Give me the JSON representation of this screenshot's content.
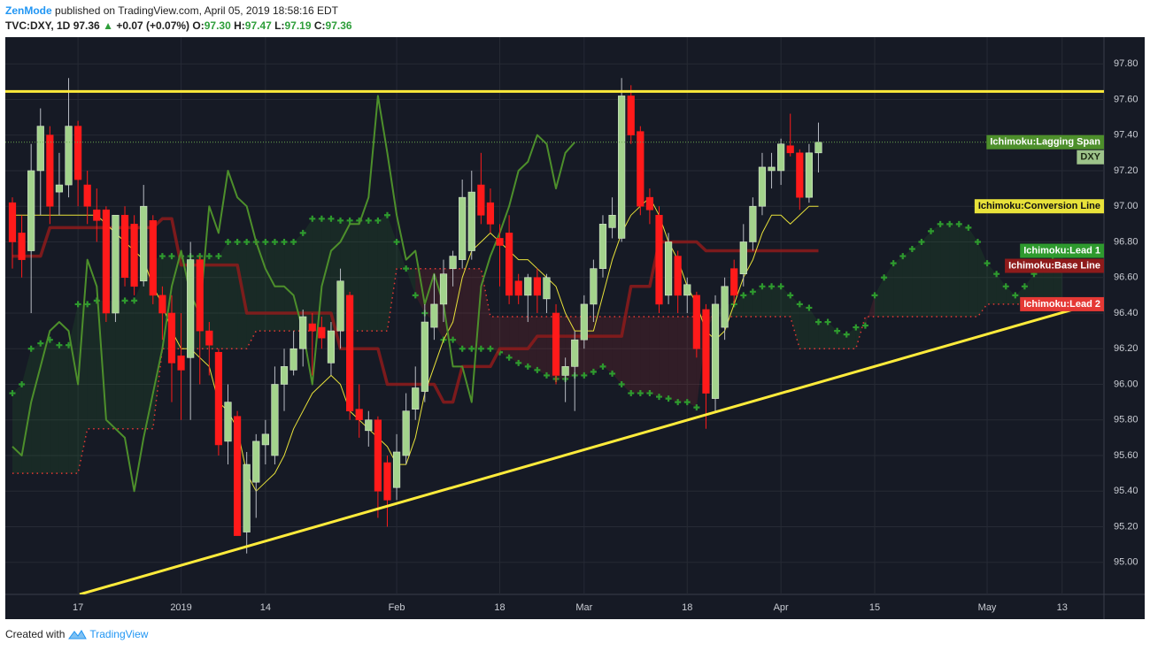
{
  "header": {
    "author": "ZenMode",
    "published": "published on TradingView.com, April 05, 2019 18:58:16 EDT"
  },
  "legend": {
    "symbol": "TVC:DXY, 1D",
    "price": "97.36",
    "arrow": "▲",
    "change": "+0.07 (+0.07%)",
    "open_label": "O:",
    "open": "97.30",
    "high_label": "H:",
    "high": "97.47",
    "low_label": "L:",
    "low": "97.19",
    "close_label": "C:",
    "close": "97.36"
  },
  "footer": {
    "created": "Created with",
    "brand": "TradingView"
  },
  "chart_data": {
    "type": "candlestick",
    "symbol_tag": "DXY",
    "up_color": "#a3d38c",
    "down_color": "#ff1a1a",
    "ylim": [
      94.82,
      97.95
    ],
    "yticks": [
      {
        "value": 95,
        "label": "95.00"
      },
      {
        "value": 95.2,
        "label": "95.20"
      },
      {
        "value": 95.4,
        "label": "95.40"
      },
      {
        "value": 95.6,
        "label": "95.60"
      },
      {
        "value": 95.8,
        "label": "95.80"
      },
      {
        "value": 96,
        "label": "96.00"
      },
      {
        "value": 96.2,
        "label": "96.20"
      },
      {
        "value": 96.4,
        "label": "96.40"
      },
      {
        "value": 96.6,
        "label": "96.60"
      },
      {
        "value": 96.8,
        "label": "96.80"
      },
      {
        "value": 97,
        "label": "97.00"
      },
      {
        "value": 97.2,
        "label": "97.20"
      },
      {
        "value": 97.4,
        "label": "97.40"
      },
      {
        "value": 97.6,
        "label": "97.60"
      },
      {
        "value": 97.8,
        "label": "97.80"
      }
    ],
    "grid": true,
    "horizontal_line": 97.645,
    "trend_line": [
      94.82,
      96.47
    ],
    "categories": [
      null,
      null,
      null,
      null,
      null,
      null,
      null,
      "17",
      null,
      null,
      null,
      null,
      null,
      null,
      null,
      null,
      null,
      null,
      "2019",
      null,
      null,
      null,
      null,
      null,
      null,
      null,
      null,
      "14",
      null,
      null,
      null,
      null,
      null,
      null,
      null,
      null,
      null,
      null,
      null,
      null,
      null,
      "Feb",
      null,
      null,
      null,
      null,
      null,
      null,
      null,
      null,
      null,
      null,
      "18",
      null,
      null,
      null,
      null,
      null,
      null,
      null,
      null,
      "Mar",
      null,
      null,
      null,
      null,
      null,
      null,
      null,
      null,
      null,
      null,
      "18",
      null,
      null,
      null,
      null,
      null,
      null,
      null,
      null,
      null,
      "Apr",
      null,
      null,
      null,
      null,
      null,
      null,
      null,
      null,
      null,
      "15",
      null,
      null,
      null,
      null,
      null,
      null,
      null,
      null,
      null,
      null,
      null,
      "May",
      null,
      null,
      null,
      null,
      null,
      null,
      null,
      "13",
      null,
      null,
      null,
      null
    ],
    "open": [
      97.02,
      96.85,
      96.75,
      97.2,
      97.4,
      97.08,
      97.12,
      97.45,
      97.12,
      96.98,
      96.98,
      96.4,
      96.95,
      96.9,
      96.58,
      96.92,
      96.5,
      96.4,
      96.16,
      96.15,
      96.7,
      96.3,
      96.18,
      95.68,
      95.82,
      95.17,
      95.45,
      95.66,
      95.6,
      96.0,
      96.08,
      96.2,
      96.34,
      96.32,
      96.12,
      96.3,
      96.5,
      95.86,
      95.74,
      95.8,
      95.56,
      95.42,
      95.6,
      95.86,
      95.96,
      96.32,
      96.45,
      96.65,
      96.7,
      96.75,
      97.12,
      97.02,
      96.82,
      96.85,
      96.58,
      96.5,
      96.6,
      96.48,
      96.4,
      96.05,
      96.1,
      96.25,
      96.45,
      96.65,
      96.88,
      96.82,
      97.62,
      97.42,
      97.05,
      96.95,
      96.5,
      96.72,
      96.5,
      96.5,
      96.42,
      95.92,
      96.32,
      96.65,
      96.62,
      96.8,
      97.0,
      97.2,
      97.2,
      97.34,
      97.3,
      97.05,
      97.3,
      null,
      null,
      null,
      null,
      null,
      null,
      null,
      null,
      null,
      null,
      null,
      null,
      null,
      null,
      null,
      null,
      null,
      null,
      null,
      null,
      null,
      null,
      null,
      null,
      null,
      null,
      null,
      null,
      null,
      null
    ],
    "high": [
      97.05,
      96.95,
      97.35,
      97.55,
      97.45,
      97.3,
      97.72,
      97.48,
      97.2,
      97.1,
      97.0,
      96.95,
      97.0,
      96.95,
      97.12,
      96.95,
      96.55,
      96.5,
      96.4,
      96.8,
      96.72,
      96.35,
      96.2,
      96.0,
      95.85,
      95.62,
      95.72,
      95.8,
      96.1,
      96.2,
      96.3,
      96.42,
      96.4,
      96.38,
      96.35,
      96.65,
      96.52,
      96.0,
      95.85,
      95.82,
      95.6,
      95.72,
      95.95,
      96.1,
      96.45,
      96.62,
      96.7,
      96.75,
      97.15,
      97.2,
      97.3,
      97.1,
      96.9,
      96.95,
      96.62,
      96.62,
      96.65,
      96.62,
      96.45,
      96.15,
      96.3,
      96.5,
      96.7,
      96.95,
      97.05,
      97.72,
      97.68,
      97.45,
      97.1,
      97.0,
      96.85,
      96.75,
      96.6,
      96.52,
      96.45,
      96.5,
      96.6,
      96.7,
      96.9,
      97.05,
      97.3,
      97.3,
      97.38,
      97.52,
      97.32,
      97.35,
      97.47,
      null,
      null,
      null,
      null,
      null,
      null,
      null,
      null,
      null,
      null,
      null,
      null,
      null,
      null,
      null,
      null,
      null,
      null,
      null,
      null,
      null,
      null,
      null,
      null,
      null,
      null,
      null,
      null,
      null,
      null
    ],
    "low": [
      96.65,
      96.6,
      96.4,
      96.95,
      96.9,
      96.95,
      97.05,
      97.0,
      96.9,
      96.8,
      96.35,
      96.35,
      96.55,
      96.5,
      96.55,
      96.45,
      96.25,
      95.9,
      95.8,
      95.8,
      96.0,
      96.05,
      95.6,
      95.55,
      95.15,
      95.05,
      95.25,
      95.55,
      95.55,
      95.85,
      96.05,
      96.1,
      96.05,
      96.2,
      96.05,
      96.2,
      95.8,
      95.7,
      95.65,
      95.25,
      95.2,
      95.35,
      95.55,
      95.8,
      95.9,
      96.25,
      96.35,
      96.55,
      96.65,
      96.7,
      96.9,
      96.85,
      96.55,
      96.45,
      96.45,
      96.35,
      96.4,
      96.4,
      96.0,
      95.9,
      95.85,
      96.2,
      96.35,
      96.6,
      96.82,
      96.8,
      97.35,
      96.95,
      96.9,
      96.4,
      96.45,
      96.4,
      96.4,
      96.15,
      95.75,
      95.85,
      96.25,
      96.45,
      96.55,
      96.75,
      96.95,
      97.1,
      97.12,
      97.28,
      96.98,
      97.02,
      97.19,
      null,
      null,
      null,
      null,
      null,
      null,
      null,
      null,
      null,
      null,
      null,
      null,
      null,
      null,
      null,
      null,
      null,
      null,
      null,
      null,
      null,
      null,
      null,
      null,
      null,
      null,
      null,
      null,
      null,
      null
    ],
    "close": [
      96.8,
      96.7,
      97.2,
      97.45,
      97.0,
      97.12,
      97.45,
      97.15,
      97.0,
      96.92,
      96.4,
      96.95,
      96.6,
      96.55,
      97.0,
      96.5,
      96.4,
      96.12,
      96.08,
      96.7,
      96.3,
      96.22,
      95.66,
      95.9,
      95.15,
      95.55,
      95.68,
      95.72,
      96.0,
      96.1,
      96.2,
      96.38,
      96.3,
      96.26,
      96.3,
      96.58,
      95.85,
      95.8,
      95.8,
      95.4,
      95.35,
      95.62,
      95.85,
      95.98,
      96.35,
      96.45,
      96.62,
      96.72,
      97.05,
      97.08,
      96.95,
      96.9,
      96.78,
      96.5,
      96.5,
      96.6,
      96.5,
      96.6,
      96.05,
      96.1,
      96.25,
      96.45,
      96.65,
      96.9,
      96.95,
      97.62,
      97.4,
      97.0,
      96.98,
      96.45,
      96.8,
      96.5,
      96.56,
      96.2,
      95.95,
      96.45,
      96.55,
      96.5,
      96.8,
      97.0,
      97.22,
      97.22,
      97.35,
      97.3,
      97.05,
      97.3,
      97.36,
      null,
      null,
      null,
      null,
      null,
      null,
      null,
      null,
      null,
      null,
      null,
      null,
      null,
      null,
      null,
      null,
      null,
      null,
      null,
      null,
      null,
      null,
      null,
      null,
      null,
      null,
      null,
      null,
      null,
      null
    ],
    "series": [
      {
        "name": "Ichimoku:Lead 2",
        "color": "#e53935",
        "style": "dots",
        "values": [
          95.5,
          95.5,
          95.5,
          95.5,
          95.5,
          95.5,
          95.5,
          95.5,
          95.75,
          95.75,
          95.75,
          95.75,
          95.75,
          95.75,
          95.75,
          95.75,
          96.2,
          96.2,
          96.2,
          96.2,
          96.2,
          96.2,
          96.2,
          96.2,
          96.2,
          96.2,
          96.3,
          96.3,
          96.3,
          96.3,
          96.3,
          96.3,
          96.3,
          96.3,
          96.3,
          96.3,
          96.3,
          96.3,
          96.3,
          96.3,
          96.3,
          96.65,
          96.65,
          96.65,
          96.65,
          96.65,
          96.65,
          96.65,
          96.65,
          96.65,
          96.65,
          96.38,
          96.38,
          96.38,
          96.38,
          96.38,
          96.38,
          96.38,
          96.38,
          96.38,
          96.38,
          96.38,
          96.38,
          96.38,
          96.38,
          96.38,
          96.38,
          96.38,
          96.38,
          96.38,
          96.38,
          96.38,
          96.38,
          96.38,
          96.38,
          96.38,
          96.38,
          96.38,
          96.38,
          96.38,
          96.38,
          96.38,
          96.38,
          96.38,
          96.2,
          96.2,
          96.2,
          96.2,
          96.2,
          96.2,
          96.2,
          96.38,
          96.38,
          96.38,
          96.38,
          96.38,
          96.38,
          96.38,
          96.38,
          96.38,
          96.38,
          96.38,
          96.38,
          96.38,
          96.45,
          96.45,
          96.45,
          96.45,
          96.45,
          96.45,
          96.45,
          96.45,
          96.45,
          null,
          null,
          null,
          null
        ]
      },
      {
        "name": "Ichimoku:Lead 1",
        "color": "#2e9a2e",
        "style": "crosses",
        "values": [
          95.95,
          96.0,
          96.2,
          96.23,
          96.25,
          96.22,
          96.22,
          96.45,
          96.45,
          96.47,
          96.47,
          96.47,
          96.47,
          96.47,
          96.6,
          96.7,
          96.72,
          96.72,
          96.72,
          96.72,
          96.72,
          96.72,
          96.72,
          96.8,
          96.8,
          96.8,
          96.8,
          96.8,
          96.8,
          96.8,
          96.8,
          96.85,
          96.93,
          96.93,
          96.93,
          96.92,
          96.92,
          96.92,
          96.92,
          96.92,
          96.95,
          96.8,
          96.65,
          96.5,
          96.4,
          96.35,
          96.25,
          96.25,
          96.2,
          96.2,
          96.2,
          96.2,
          96.18,
          96.15,
          96.12,
          96.1,
          96.08,
          96.05,
          96.03,
          96.03,
          96.05,
          96.05,
          96.07,
          96.1,
          96.06,
          96.0,
          95.95,
          95.95,
          95.95,
          95.93,
          95.92,
          95.9,
          95.9,
          95.87,
          96.3,
          96.4,
          96.45,
          96.45,
          96.5,
          96.52,
          96.55,
          96.55,
          96.55,
          96.5,
          96.45,
          96.43,
          96.35,
          96.35,
          96.3,
          96.28,
          96.32,
          96.33,
          96.5,
          96.6,
          96.68,
          96.72,
          96.76,
          96.8,
          96.86,
          96.9,
          96.9,
          96.9,
          96.88,
          96.8,
          96.68,
          96.62,
          96.55,
          96.5,
          96.55,
          96.62,
          96.65,
          96.7,
          96.75,
          null,
          null,
          null,
          null
        ]
      },
      {
        "name": "Ichimoku:Base Line",
        "color": "#8e1b1b",
        "style": "thick",
        "values": [
          96.72,
          96.72,
          96.72,
          96.72,
          96.88,
          96.88,
          96.88,
          96.88,
          96.88,
          96.88,
          96.88,
          96.88,
          96.88,
          96.88,
          96.88,
          96.88,
          96.93,
          96.93,
          96.67,
          96.67,
          96.67,
          96.67,
          96.67,
          96.67,
          96.67,
          96.4,
          96.4,
          96.4,
          96.4,
          96.4,
          96.4,
          96.4,
          96.4,
          96.4,
          96.4,
          96.2,
          96.2,
          96.2,
          96.2,
          96.2,
          96.0,
          96.0,
          96.0,
          96.0,
          96.0,
          96.0,
          95.9,
          95.9,
          96.1,
          96.1,
          96.1,
          96.1,
          96.2,
          96.2,
          96.2,
          96.2,
          96.27,
          96.27,
          96.27,
          96.27,
          96.27,
          96.27,
          96.27,
          96.27,
          96.27,
          96.27,
          96.55,
          96.55,
          96.55,
          96.8,
          96.8,
          96.8,
          96.8,
          96.8,
          96.75,
          96.75,
          96.75,
          96.75,
          96.75,
          96.75,
          96.75,
          96.75,
          96.75,
          96.75,
          96.75,
          96.75,
          96.75,
          null,
          null,
          null,
          null,
          null,
          null,
          null,
          null,
          null,
          null,
          null,
          null,
          null,
          null,
          null,
          null,
          null,
          null,
          null,
          null,
          null,
          null,
          null,
          null,
          null,
          null,
          null,
          null,
          null,
          null
        ]
      },
      {
        "name": "Ichimoku:Conversion Line",
        "color": "#e8e23a",
        "style": "thin",
        "values": [
          96.95,
          96.95,
          96.95,
          96.95,
          96.95,
          96.95,
          96.95,
          96.95,
          96.95,
          96.95,
          96.9,
          96.85,
          96.8,
          96.75,
          96.7,
          96.55,
          96.45,
          96.3,
          96.2,
          96.2,
          96.15,
          96.1,
          95.9,
          95.85,
          95.75,
          95.5,
          95.4,
          95.45,
          95.5,
          95.6,
          95.75,
          95.85,
          95.95,
          96.0,
          96.05,
          96.0,
          95.85,
          95.8,
          95.75,
          95.7,
          95.65,
          95.55,
          95.55,
          95.7,
          95.95,
          96.1,
          96.25,
          96.35,
          96.6,
          96.75,
          96.8,
          96.85,
          96.8,
          96.75,
          96.7,
          96.7,
          96.65,
          96.6,
          96.55,
          96.4,
          96.3,
          96.3,
          96.3,
          96.5,
          96.7,
          96.85,
          96.95,
          97.0,
          97.05,
          96.95,
          96.8,
          96.7,
          96.55,
          96.45,
          96.3,
          96.25,
          96.3,
          96.45,
          96.6,
          96.7,
          96.85,
          96.95,
          96.95,
          96.9,
          96.95,
          97.0,
          97.0,
          null,
          null,
          null,
          null,
          null,
          null,
          null,
          null,
          null,
          null,
          null,
          null,
          null,
          null,
          null,
          null,
          null,
          null,
          null,
          null,
          null,
          null,
          null,
          null,
          null,
          null,
          null,
          null,
          null,
          null
        ]
      },
      {
        "name": "Ichimoku:Lagging Span",
        "color": "#4d8f2b",
        "style": "line",
        "values": [
          95.65,
          95.6,
          95.9,
          96.1,
          96.3,
          96.35,
          96.3,
          96.0,
          96.7,
          96.55,
          95.8,
          95.75,
          95.7,
          95.4,
          95.7,
          95.95,
          96.2,
          96.55,
          96.75,
          96.5,
          96.4,
          97.0,
          96.85,
          97.2,
          97.05,
          97.0,
          96.8,
          96.65,
          96.55,
          96.55,
          96.5,
          96.3,
          96.0,
          96.55,
          96.75,
          96.8,
          96.9,
          96.9,
          97.05,
          97.62,
          97.3,
          96.95,
          96.7,
          96.75,
          96.45,
          96.62,
          96.45,
          96.1,
          96.1,
          95.9,
          96.55,
          96.72,
          96.85,
          97.0,
          97.2,
          97.25,
          97.4,
          97.35,
          97.1,
          97.3,
          97.36,
          null,
          null,
          null,
          null,
          null,
          null,
          null,
          null,
          null,
          null,
          null,
          null,
          null,
          null,
          null,
          null,
          null,
          null,
          null,
          null,
          null,
          null,
          null,
          null,
          null,
          null,
          null,
          null,
          null,
          null,
          null,
          null,
          null,
          null,
          null,
          null,
          null,
          null,
          null,
          null,
          null,
          null,
          null,
          null,
          null,
          null,
          null,
          null,
          null,
          null,
          null,
          null,
          null,
          null,
          null,
          null
        ]
      }
    ]
  }
}
